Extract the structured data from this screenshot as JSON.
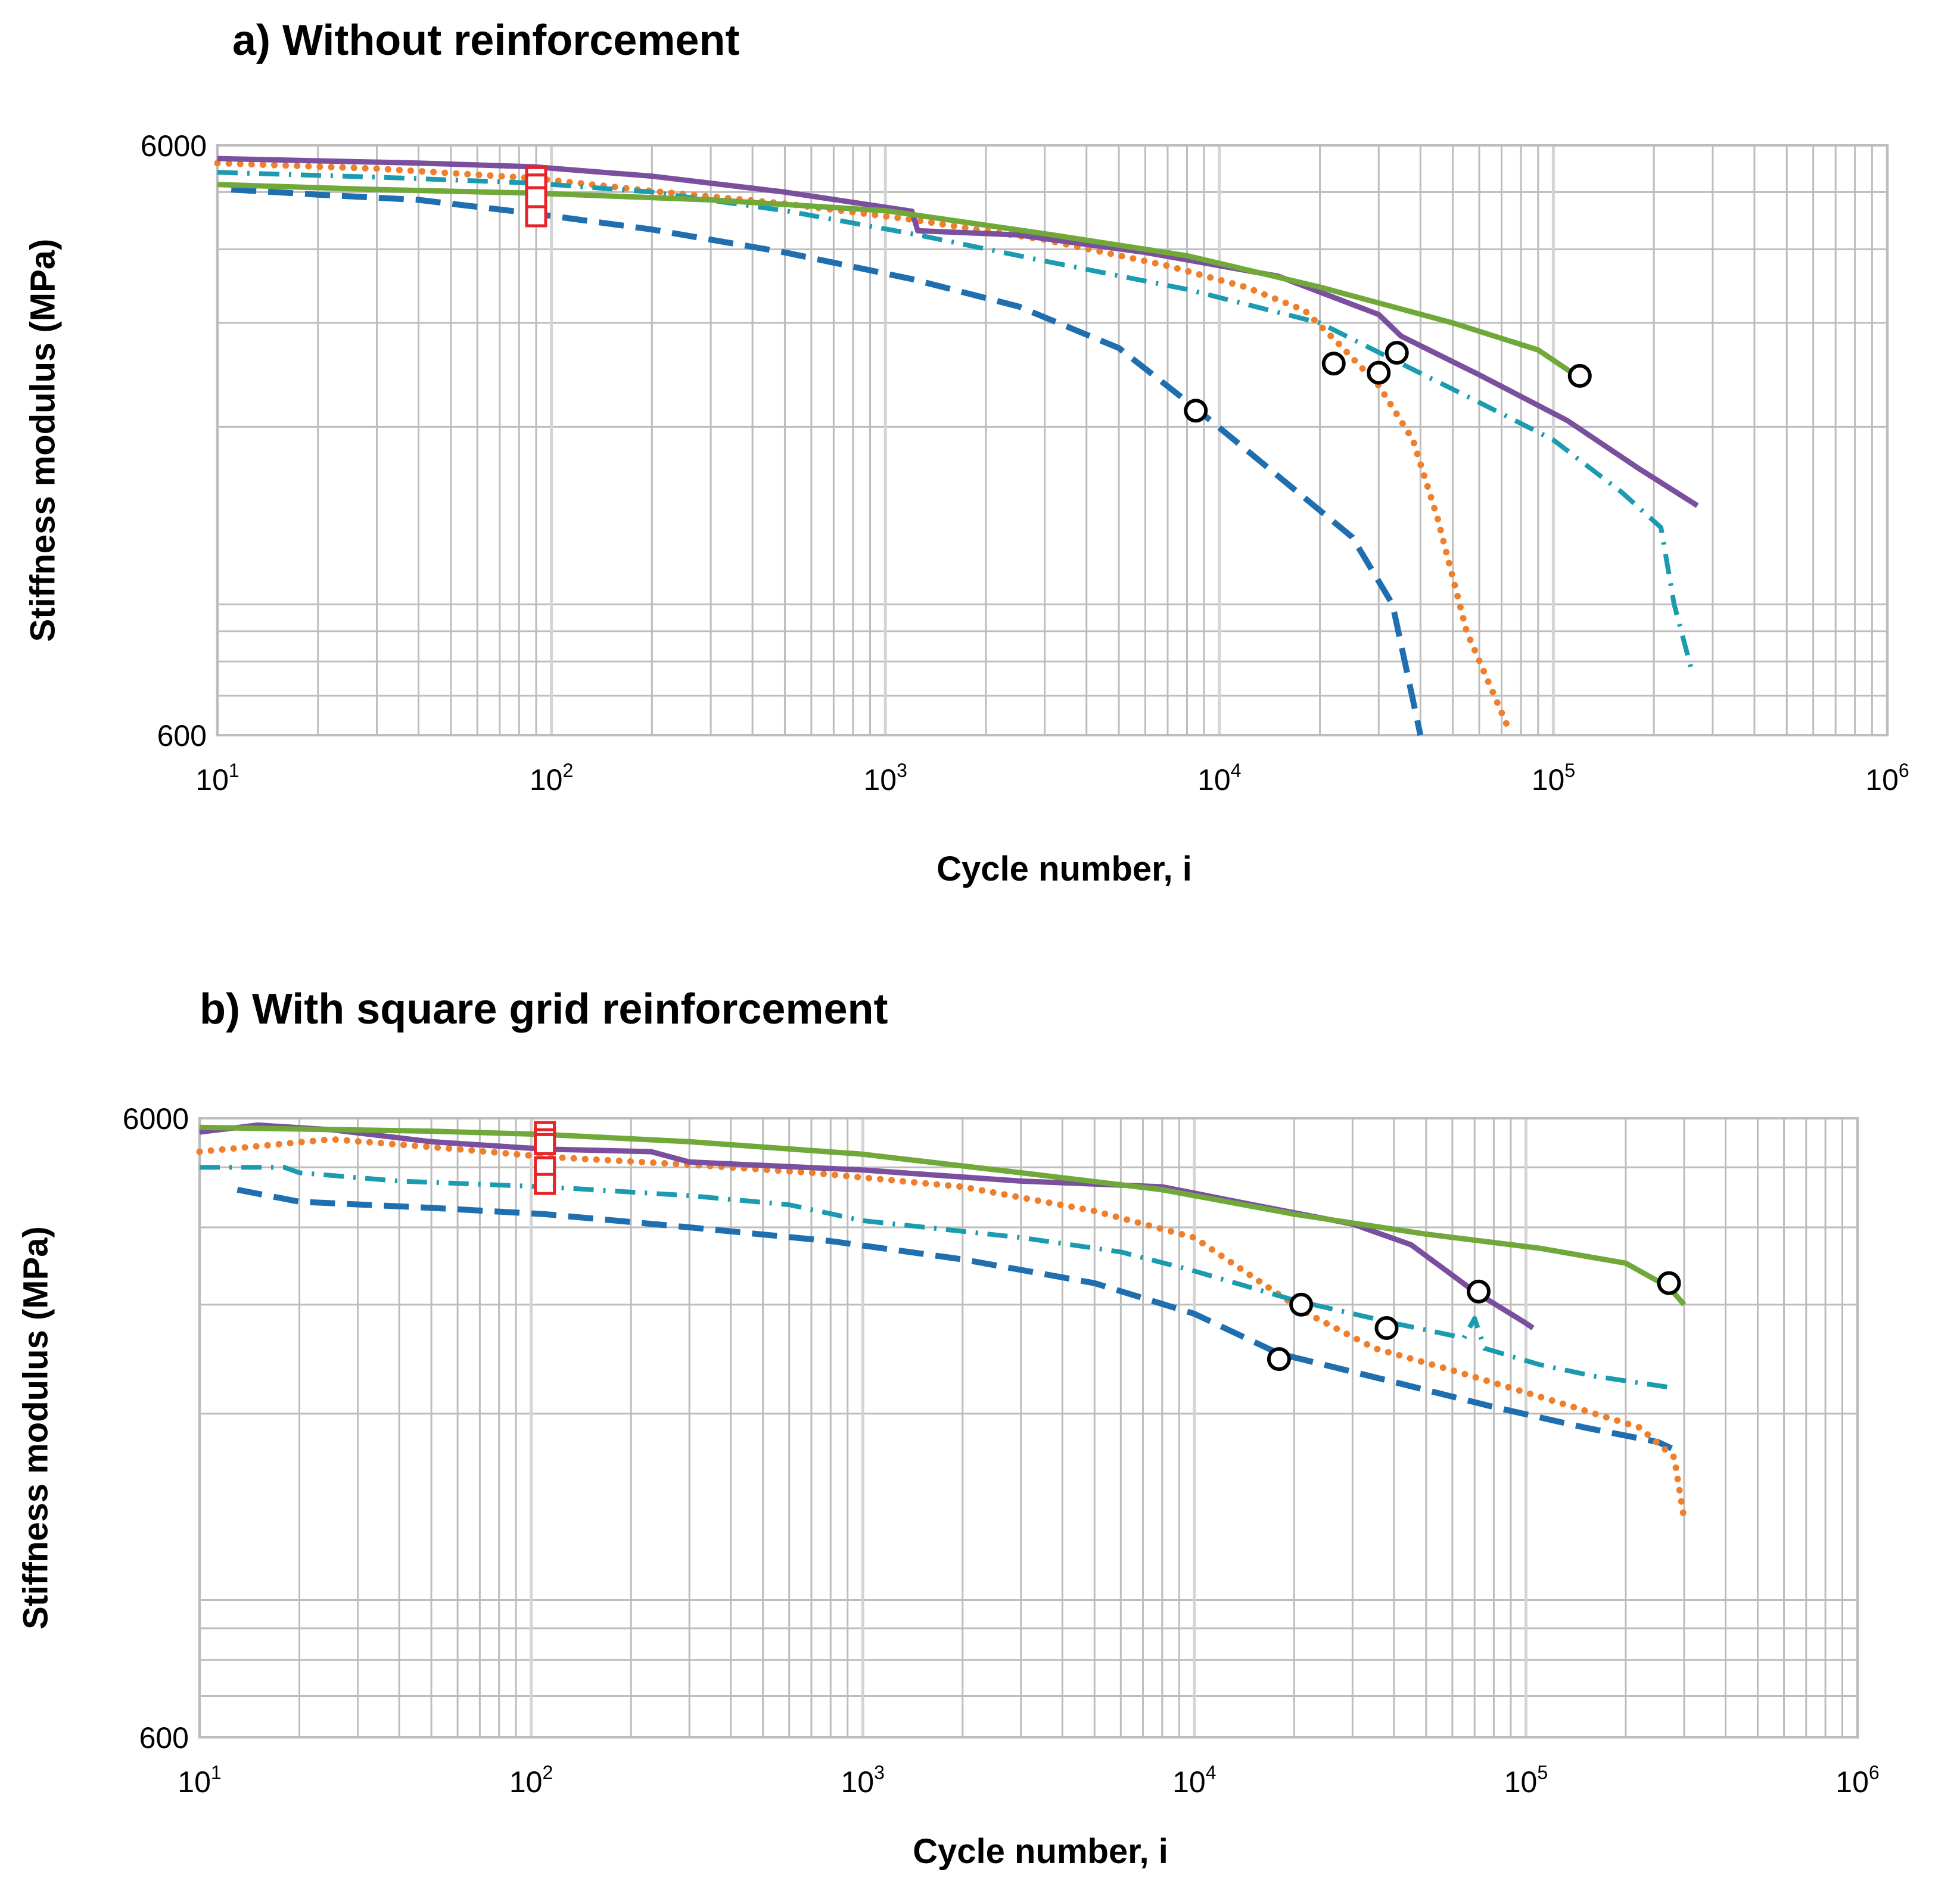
{
  "chart_data": [
    {
      "type": "line",
      "id": "a",
      "title": "a) Without reinforcement",
      "xlabel": "Cycle number, i",
      "ylabel": "Stiffness modulus (MPa)",
      "xscale": "log",
      "yscale": "log",
      "xlim": [
        10,
        1000000
      ],
      "ylim": [
        600,
        6000
      ],
      "x_ticks": [
        {
          "base": "10",
          "exp": "1"
        },
        {
          "base": "10",
          "exp": "2"
        },
        {
          "base": "10",
          "exp": "3"
        },
        {
          "base": "10",
          "exp": "4"
        },
        {
          "base": "10",
          "exp": "5"
        },
        {
          "base": "10",
          "exp": "6"
        }
      ],
      "y_ticks": [
        "600",
        "6000"
      ],
      "grid": true,
      "legend": "none",
      "series": [
        {
          "name": "dashed-blue",
          "color": "#1f6fb0",
          "style": "dashed",
          "points": [
            [
              11,
              5050
            ],
            [
              20,
              4950
            ],
            [
              40,
              4850
            ],
            [
              88,
              4600
            ],
            [
              200,
              4320
            ],
            [
              500,
              3950
            ],
            [
              1200,
              3560
            ],
            [
              2500,
              3200
            ],
            [
              5000,
              2720
            ],
            [
              8500,
              2150
            ],
            [
              15000,
              1650
            ],
            [
              25000,
              1300
            ],
            [
              33000,
              1000
            ],
            [
              40000,
              600
            ]
          ]
        },
        {
          "name": "dotted-orange",
          "color": "#f07f2c",
          "style": "dotted",
          "points": [
            [
              10,
              5600
            ],
            [
              30,
              5480
            ],
            [
              88,
              5280
            ],
            [
              200,
              5020
            ],
            [
              500,
              4780
            ],
            [
              1200,
              4490
            ],
            [
              3000,
              4150
            ],
            [
              7000,
              3750
            ],
            [
              12000,
              3450
            ],
            [
              18000,
              3150
            ],
            [
              23000,
              2750
            ],
            [
              30000,
              2350
            ],
            [
              38000,
              1900
            ],
            [
              45000,
              1400
            ],
            [
              55000,
              900
            ],
            [
              73000,
              620
            ]
          ]
        },
        {
          "name": "dashdot-teal",
          "color": "#1a9bb0",
          "style": "dashdot",
          "points": [
            [
              10,
              5400
            ],
            [
              30,
              5300
            ],
            [
              88,
              5180
            ],
            [
              200,
              5000
            ],
            [
              500,
              4650
            ],
            [
              1200,
              4250
            ],
            [
              3000,
              3820
            ],
            [
              8000,
              3420
            ],
            [
              20000,
              3000
            ],
            [
              35000,
              2560
            ],
            [
              60000,
              2200
            ],
            [
              100000,
              1900
            ],
            [
              160000,
              1550
            ],
            [
              210000,
              1350
            ],
            [
              230000,
              1000
            ],
            [
              260000,
              770
            ]
          ]
        },
        {
          "name": "solid-purple",
          "color": "#7a4f9e",
          "style": "solid",
          "points": [
            [
              10,
              5700
            ],
            [
              40,
              5600
            ],
            [
              88,
              5520
            ],
            [
              200,
              5320
            ],
            [
              500,
              5000
            ],
            [
              1200,
              4640
            ],
            [
              1250,
              4300
            ],
            [
              2500,
              4230
            ],
            [
              6000,
              3950
            ],
            [
              15000,
              3600
            ],
            [
              30000,
              3100
            ],
            [
              35000,
              2850
            ],
            [
              60000,
              2450
            ],
            [
              110000,
              2050
            ],
            [
              180000,
              1700
            ],
            [
              270000,
              1470
            ]
          ]
        },
        {
          "name": "solid-green",
          "color": "#70a83a",
          "style": "solid",
          "points": [
            [
              10,
              5150
            ],
            [
              30,
              5050
            ],
            [
              88,
              4980
            ],
            [
              300,
              4850
            ],
            [
              1000,
              4650
            ],
            [
              3000,
              4250
            ],
            [
              8000,
              3900
            ],
            [
              20000,
              3450
            ],
            [
              50000,
              3000
            ],
            [
              90000,
              2700
            ],
            [
              120000,
              2420
            ]
          ]
        }
      ],
      "initial_markers": [
        [
          90,
          5300
        ],
        [
          90,
          5000
        ],
        [
          90,
          5150
        ],
        [
          90,
          4900
        ],
        [
          90,
          4550
        ]
      ],
      "failure_markers": [
        [
          8500,
          2130
        ],
        [
          22000,
          2560
        ],
        [
          30000,
          2470
        ],
        [
          34000,
          2670
        ],
        [
          120000,
          2440
        ]
      ]
    },
    {
      "type": "line",
      "id": "b",
      "title": "b) With square grid reinforcement",
      "xlabel": "Cycle number, i",
      "ylabel": "Stiffness modulus (MPa)",
      "xscale": "log",
      "yscale": "log",
      "xlim": [
        10,
        1000000
      ],
      "ylim": [
        600,
        6000
      ],
      "x_ticks": [
        {
          "base": "10",
          "exp": "1"
        },
        {
          "base": "10",
          "exp": "2"
        },
        {
          "base": "10",
          "exp": "3"
        },
        {
          "base": "10",
          "exp": "4"
        },
        {
          "base": "10",
          "exp": "5"
        },
        {
          "base": "10",
          "exp": "6"
        }
      ],
      "y_ticks": [
        "600",
        "6000"
      ],
      "grid": true,
      "legend": "none",
      "series": [
        {
          "name": "dashed-blue",
          "color": "#1f6fb0",
          "style": "dashed",
          "points": [
            [
              13,
              4600
            ],
            [
              20,
              4400
            ],
            [
              50,
              4300
            ],
            [
              110,
              4200
            ],
            [
              300,
              4000
            ],
            [
              800,
              3800
            ],
            [
              2000,
              3550
            ],
            [
              5000,
              3250
            ],
            [
              10000,
              2900
            ],
            [
              18000,
              2500
            ],
            [
              40000,
              2250
            ],
            [
              80000,
              2050
            ],
            [
              150000,
              1900
            ],
            [
              250000,
              1800
            ],
            [
              280000,
              1750
            ]
          ]
        },
        {
          "name": "dotted-orange",
          "color": "#f07f2c",
          "style": "dotted",
          "points": [
            [
              10,
              5300
            ],
            [
              25,
              5550
            ],
            [
              60,
              5350
            ],
            [
              110,
              5200
            ],
            [
              300,
              5050
            ],
            [
              700,
              4900
            ],
            [
              2000,
              4650
            ],
            [
              5000,
              4250
            ],
            [
              10000,
              3850
            ],
            [
              16000,
              3250
            ],
            [
              22000,
              2900
            ],
            [
              35000,
              2550
            ],
            [
              60000,
              2350
            ],
            [
              120000,
              2100
            ],
            [
              220000,
              1900
            ],
            [
              280000,
              1700
            ],
            [
              300000,
              1350
            ]
          ]
        },
        {
          "name": "dashdot-teal",
          "color": "#1a9bb0",
          "style": "dashdot",
          "points": [
            [
              10,
              5000
            ],
            [
              18,
              5000
            ],
            [
              20,
              4900
            ],
            [
              40,
              4750
            ],
            [
              110,
              4650
            ],
            [
              300,
              4500
            ],
            [
              600,
              4350
            ],
            [
              1000,
              4100
            ],
            [
              3000,
              3850
            ],
            [
              6000,
              3650
            ],
            [
              10000,
              3400
            ],
            [
              20000,
              3050
            ],
            [
              40000,
              2800
            ],
            [
              65000,
              2650
            ],
            [
              70000,
              2850
            ],
            [
              75000,
              2550
            ],
            [
              110000,
              2400
            ],
            [
              160000,
              2300
            ],
            [
              280000,
              2200
            ]
          ]
        },
        {
          "name": "solid-purple",
          "color": "#7a4f9e",
          "style": "solid",
          "points": [
            [
              10,
              5700
            ],
            [
              15,
              5850
            ],
            [
              25,
              5750
            ],
            [
              50,
              5500
            ],
            [
              110,
              5350
            ],
            [
              230,
              5300
            ],
            [
              300,
              5100
            ],
            [
              1000,
              4950
            ],
            [
              3000,
              4750
            ],
            [
              8000,
              4650
            ],
            [
              15000,
              4350
            ],
            [
              30000,
              4050
            ],
            [
              45000,
              3750
            ],
            [
              70000,
              3150
            ],
            [
              100000,
              2800
            ],
            [
              105000,
              2750
            ]
          ]
        },
        {
          "name": "solid-green",
          "color": "#70a83a",
          "style": "solid",
          "points": [
            [
              10,
              5800
            ],
            [
              50,
              5720
            ],
            [
              110,
              5650
            ],
            [
              300,
              5500
            ],
            [
              1000,
              5250
            ],
            [
              3000,
              4900
            ],
            [
              8000,
              4600
            ],
            [
              20000,
              4200
            ],
            [
              50000,
              3900
            ],
            [
              110000,
              3700
            ],
            [
              200000,
              3500
            ],
            [
              270000,
              3200
            ],
            [
              300000,
              3000
            ]
          ]
        }
      ],
      "initial_markers": [
        [
          110,
          5700
        ],
        [
          110,
          5550
        ],
        [
          110,
          5450
        ],
        [
          110,
          5000
        ],
        [
          110,
          4700
        ]
      ],
      "failure_markers": [
        [
          18000,
          2450
        ],
        [
          21000,
          3000
        ],
        [
          38000,
          2750
        ],
        [
          72000,
          3150
        ],
        [
          270000,
          3250
        ]
      ]
    }
  ]
}
